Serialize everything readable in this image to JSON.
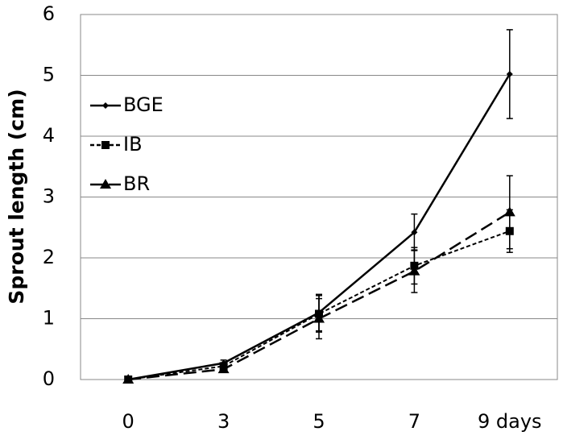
{
  "chart_data": {
    "type": "line",
    "y_label": "Sprout length (cm)",
    "categories": [
      "0",
      "3",
      "5",
      "7",
      "9 days"
    ],
    "series": [
      {
        "name": "BGE",
        "color": "#000000",
        "dash": "solid",
        "marker": "diamond",
        "values": [
          0,
          0.27,
          1.1,
          2.42,
          5.02
        ],
        "errors": [
          0,
          0.05,
          0.3,
          0.3,
          0.73
        ]
      },
      {
        "name": "IB",
        "color": "#000000",
        "dash": "dotted",
        "marker": "square",
        "values": [
          0,
          0.22,
          1.08,
          1.87,
          2.44
        ],
        "errors": [
          0,
          0.05,
          0.3,
          0.3,
          0.35
        ]
      },
      {
        "name": "BR",
        "color": "#000000",
        "dash": "dashed",
        "marker": "triangle",
        "values": [
          0,
          0.17,
          1.0,
          1.78,
          2.75
        ],
        "errors": [
          0,
          0.04,
          0.33,
          0.35,
          0.6
        ]
      }
    ],
    "ylim": [
      0,
      6
    ],
    "yticks": [
      0,
      1,
      2,
      3,
      4,
      5,
      6
    ],
    "grid": true,
    "legend": "left"
  }
}
